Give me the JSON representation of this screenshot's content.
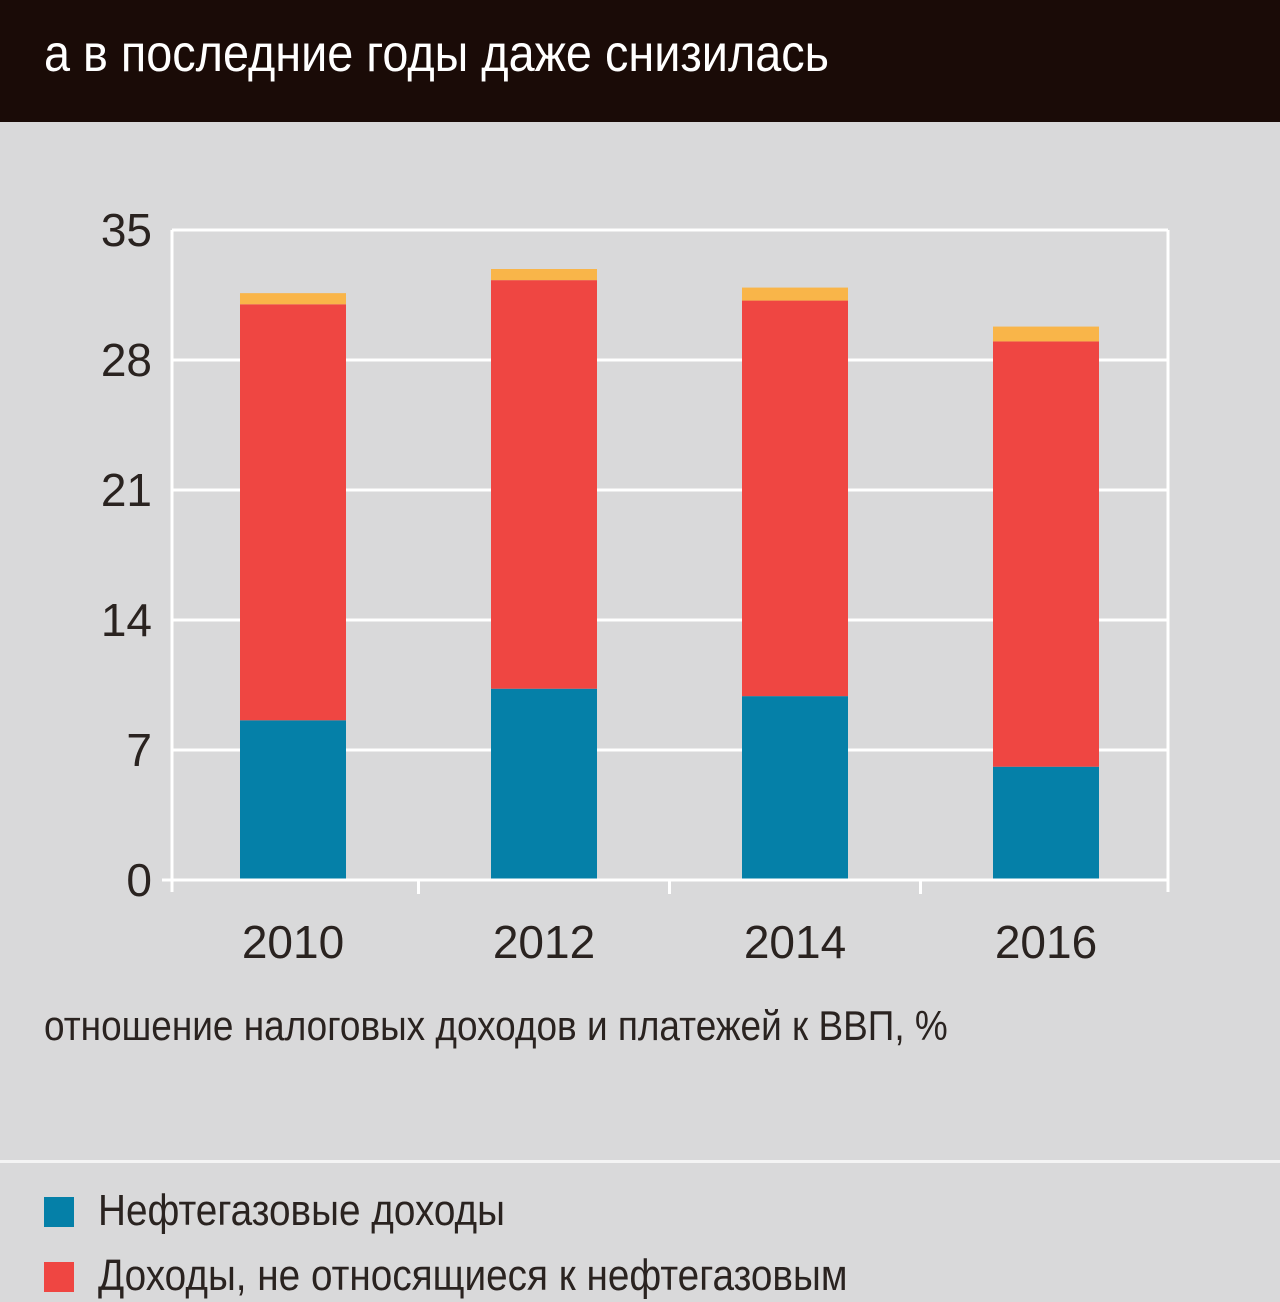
{
  "header": {
    "title": "а в последние годы даже снизилась"
  },
  "caption": "отношение налоговых доходов и платежей к ВВП, %",
  "colors": {
    "oil_gas": "#0580a8",
    "non_oil_gas": "#ef4642",
    "other": "#f9b549"
  },
  "legend": [
    {
      "label": "Нефтегазовые доходы",
      "color": "#0580a8"
    },
    {
      "label": "Доходы, не относящиеся к нефтегазовым",
      "color": "#ef4642"
    }
  ],
  "chart_data": {
    "type": "bar",
    "stacked": true,
    "categories": [
      "2010",
      "2012",
      "2014",
      "2016"
    ],
    "series": [
      {
        "name": "Нефтегазовые доходы",
        "color": "#0580a8",
        "values": [
          8.6,
          10.3,
          9.9,
          6.1
        ]
      },
      {
        "name": "Доходы, не относящиеся к нефтегазовым",
        "color": "#ef4642",
        "values": [
          22.4,
          22.0,
          21.3,
          22.9
        ]
      },
      {
        "color": "#f9b549",
        "values": [
          0.6,
          0.6,
          0.7,
          0.8
        ]
      }
    ],
    "yticks": [
      "0",
      "7",
      "14",
      "21",
      "28",
      "35"
    ],
    "ylim": [
      0,
      35
    ],
    "grid": true
  }
}
